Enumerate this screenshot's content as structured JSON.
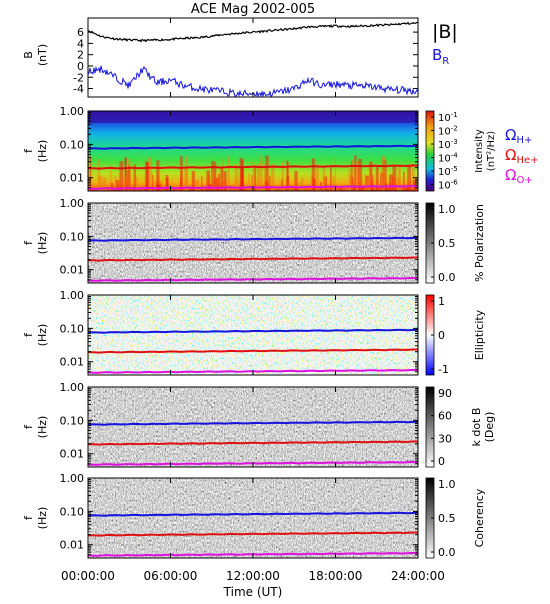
{
  "title": "ACE Mag 2002-005",
  "xaxis": {
    "label": "Time (UT)",
    "ticks": [
      "00:00:00",
      "06:00:00",
      "12:00:00",
      "18:00:00",
      "24:00:00"
    ],
    "range_hours": [
      0,
      24
    ]
  },
  "legend": {
    "bmag": "|B|",
    "br_main": "B",
    "br_sub": "R",
    "omega": "Ω",
    "hplus": "H+",
    "heplus": "He+",
    "oplus": "O+"
  },
  "colors": {
    "bmag": "#000000",
    "br": "#1515e0",
    "hplus": "#1515e0",
    "heplus": "#e01010",
    "oplus": "#e010e0"
  },
  "panel_ylabel": {
    "f_main": "f",
    "f_sub": "(Hz)",
    "b_main": "B",
    "b_sub": "(nT)"
  },
  "freq_ticks": [
    "1.00",
    "0.10",
    "0.01"
  ],
  "b_ticks": [
    "6",
    "4",
    "2",
    "0",
    "-2",
    "-4"
  ],
  "colorbars": {
    "intensity": {
      "label_main": "Intensity",
      "label_sub": "(nT²/Hz)",
      "tick_base": "10",
      "tick_exps": [
        "-1",
        "-2",
        "-3",
        "-4",
        "-5",
        "-6"
      ]
    },
    "polarization": {
      "label": "% Polarization",
      "ticks": [
        "1.0",
        "0.5",
        "0.0"
      ]
    },
    "ellipticity": {
      "label": "Ellipticity",
      "ticks": [
        "1",
        "0",
        "-1"
      ]
    },
    "kdotb": {
      "label_main": "k dot B",
      "label_sub": "(Deg)",
      "ticks": [
        "90",
        "60",
        "30",
        "0"
      ]
    },
    "coherency": {
      "label": "Coherency",
      "ticks": [
        "1.0",
        "0.5",
        "0.0"
      ]
    }
  },
  "chart_data": [
    {
      "type": "line",
      "ylabel": "B (nT)",
      "ylim": [
        -5.5,
        8.5
      ],
      "x_hours": [
        0,
        1,
        2,
        3,
        4,
        5,
        6,
        7,
        8,
        9,
        10,
        11,
        12,
        13,
        14,
        15,
        16,
        17,
        18,
        19,
        20,
        21,
        22,
        23,
        24
      ],
      "series": [
        {
          "name": "|B|",
          "values": [
            6.3,
            5.2,
            4.8,
            4.6,
            4.5,
            4.6,
            4.7,
            4.9,
            5.0,
            5.3,
            5.6,
            5.8,
            6.0,
            6.2,
            6.4,
            6.6,
            6.9,
            7.0,
            7.1,
            7.0,
            7.1,
            7.2,
            7.3,
            7.5,
            7.6
          ]
        },
        {
          "name": "BR",
          "values": [
            -1.0,
            -0.5,
            -2.0,
            -3.5,
            -0.5,
            -3.0,
            -2.5,
            -3.5,
            -4.0,
            -4.3,
            -4.6,
            -5.0,
            -4.8,
            -5.0,
            -4.6,
            -4.0,
            -2.5,
            -3.5,
            -3.2,
            -3.5,
            -3.5,
            -3.8,
            -4.2,
            -4.3,
            -4.5
          ]
        }
      ]
    },
    {
      "type": "heatmap",
      "name": "Intensity",
      "ylabel": "f (Hz)",
      "yscale": "log",
      "ylim": [
        0.004,
        1.0
      ],
      "x_hours": [
        0,
        24
      ],
      "overlays": [
        {
          "name": "H+",
          "values": [
            0.075,
            0.09
          ]
        },
        {
          "name": "He+",
          "values": [
            0.019,
            0.023
          ]
        },
        {
          "name": "O+",
          "values": [
            0.0047,
            0.0056
          ]
        }
      ]
    },
    {
      "type": "heatmap",
      "name": "% Polarization",
      "ylabel": "f (Hz)",
      "yscale": "log",
      "ylim": [
        0.004,
        1.0
      ],
      "x_hours": [
        0,
        24
      ],
      "overlays": [
        {
          "name": "H+",
          "values": [
            0.075,
            0.09
          ]
        },
        {
          "name": "He+",
          "values": [
            0.019,
            0.023
          ]
        },
        {
          "name": "O+",
          "values": [
            0.0047,
            0.0056
          ]
        }
      ]
    },
    {
      "type": "heatmap",
      "name": "Ellipticity",
      "ylabel": "f (Hz)",
      "yscale": "log",
      "ylim": [
        0.004,
        1.0
      ],
      "x_hours": [
        0,
        24
      ],
      "overlays": [
        {
          "name": "H+",
          "values": [
            0.075,
            0.09
          ]
        },
        {
          "name": "He+",
          "values": [
            0.019,
            0.023
          ]
        },
        {
          "name": "O+",
          "values": [
            0.0047,
            0.0056
          ]
        }
      ]
    },
    {
      "type": "heatmap",
      "name": "k dot B",
      "ylabel": "f (Hz)",
      "yscale": "log",
      "ylim": [
        0.004,
        1.0
      ],
      "x_hours": [
        0,
        24
      ],
      "overlays": [
        {
          "name": "H+",
          "values": [
            0.075,
            0.09
          ]
        },
        {
          "name": "He+",
          "values": [
            0.019,
            0.023
          ]
        },
        {
          "name": "O+",
          "values": [
            0.0047,
            0.0056
          ]
        }
      ]
    },
    {
      "type": "heatmap",
      "name": "Coherency",
      "ylabel": "f (Hz)",
      "yscale": "log",
      "ylim": [
        0.004,
        1.0
      ],
      "x_hours": [
        0,
        24
      ],
      "overlays": [
        {
          "name": "H+",
          "values": [
            0.075,
            0.09
          ]
        },
        {
          "name": "He+",
          "values": [
            0.019,
            0.023
          ]
        },
        {
          "name": "O+",
          "values": [
            0.0047,
            0.0056
          ]
        }
      ]
    }
  ]
}
